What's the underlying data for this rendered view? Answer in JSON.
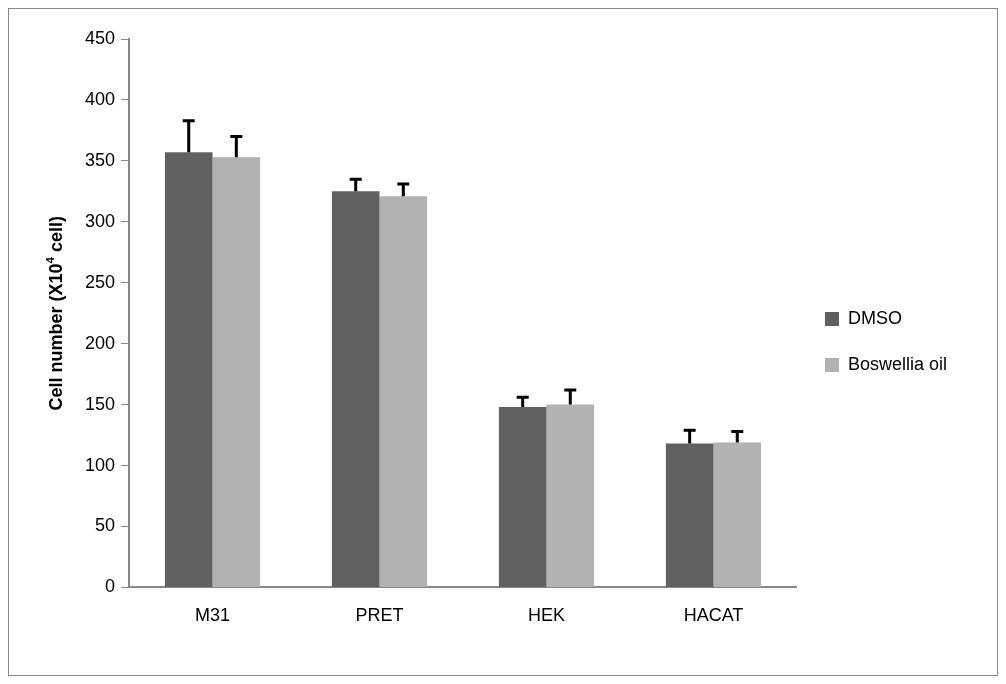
{
  "chart_data": {
    "type": "bar",
    "ylabel": "Cell number (X10$^{4}$ cell)",
    "categories": [
      "M31",
      "PRET",
      "HEK",
      "HACAT"
    ],
    "series": [
      {
        "name": "DMSO",
        "color": "#606060",
        "values": [
          357,
          325,
          148,
          118
        ],
        "errors": [
          [
            357,
            383
          ],
          [
            325,
            335
          ],
          [
            148,
            156
          ],
          [
            118,
            129
          ]
        ]
      },
      {
        "name": "Boswellia oil",
        "color": "#b2b2b2",
        "values": [
          353,
          321,
          150,
          119
        ],
        "errors": [
          [
            353,
            370
          ],
          [
            321,
            331
          ],
          [
            150,
            162
          ],
          [
            119,
            128
          ]
        ]
      }
    ],
    "ylim": [
      0,
      450
    ],
    "yticks": [
      0,
      50,
      100,
      150,
      200,
      250,
      300,
      350,
      400,
      450
    ],
    "grid": false,
    "legend": "right"
  }
}
